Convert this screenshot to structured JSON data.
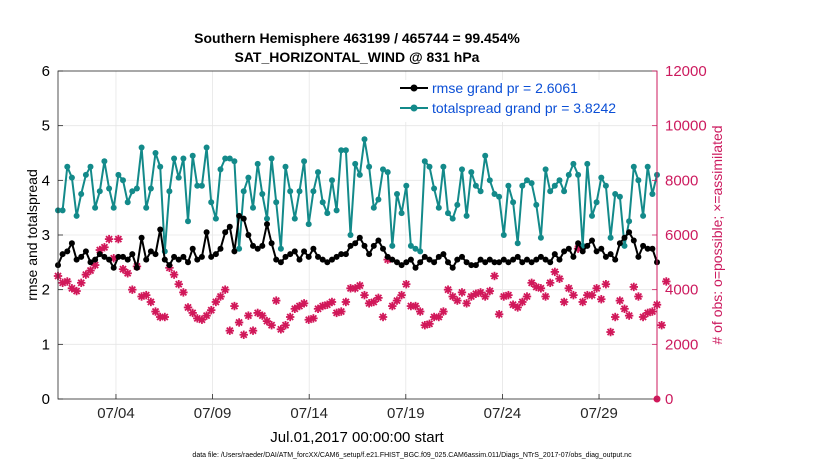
{
  "chart_data": {
    "type": "line",
    "title": "Southern Hemisphere 463199 / 465744 = 99.454%",
    "subtitle": "SAT_HORIZONTAL_WIND @ 831 hPa",
    "ylabel": "rmse and totalspread",
    "ylabel_right": "# of obs: o=possible; ×=assimilated",
    "xlabel": "Jul.01,2017 00:00:00 start",
    "footnote": "data file: /Users/raeder/DAI/ATM_forcXX/CAM6_setup/f.e21.FHIST_BGC.f09_025.CAM6assim.011/Diags_NTrS_2017-07/obs_diag_output.nc",
    "xlim": [
      1,
      32
    ],
    "ylim": [
      0,
      6
    ],
    "ylim_right": [
      0,
      12000
    ],
    "x_ticks": [
      4,
      9,
      14,
      19,
      24,
      29
    ],
    "x_tick_labels": [
      "07/04",
      "07/09",
      "07/14",
      "07/19",
      "07/24",
      "07/29"
    ],
    "y_ticks": [
      "0",
      "1",
      "2",
      "3",
      "4",
      "5",
      "6"
    ],
    "y_ticks_right": [
      "0",
      "2000",
      "4000",
      "6000",
      "8000",
      "10000",
      "12000"
    ],
    "colors": {
      "rmse": "#000000",
      "spread": "#138a8a",
      "obs": "#d1185a",
      "left_axis": "#000000",
      "right_axis": "#cc1a5e",
      "legend_text": "#0b4fd6"
    },
    "series": [
      {
        "name": "rmse grand pr = 2.6061",
        "key": "rmse",
        "values": [
          2.45,
          2.65,
          2.7,
          2.85,
          2.55,
          2.6,
          2.7,
          2.5,
          2.55,
          2.65,
          2.6,
          2.55,
          2.4,
          2.6,
          2.6,
          2.55,
          2.65,
          2.4,
          2.95,
          2.55,
          2.7,
          2.65,
          3.1,
          2.55,
          2.45,
          2.6,
          2.55,
          2.6,
          2.5,
          2.75,
          2.55,
          2.6,
          3.05,
          2.6,
          2.65,
          2.75,
          3.05,
          3.15,
          2.7,
          3.35,
          3.3,
          3.0,
          2.8,
          2.75,
          2.8,
          3.2,
          2.85,
          2.55,
          2.5,
          2.6,
          2.65,
          2.7,
          2.55,
          2.7,
          2.6,
          2.75,
          2.6,
          2.55,
          2.5,
          2.55,
          2.6,
          2.65,
          2.65,
          2.8,
          2.85,
          2.95,
          2.8,
          2.65,
          2.8,
          2.9,
          2.75,
          2.6,
          2.55,
          2.5,
          2.45,
          2.5,
          2.55,
          2.4,
          2.5,
          2.6,
          2.55,
          2.5,
          2.6,
          2.65,
          2.5,
          2.4,
          2.55,
          2.6,
          2.5,
          2.45,
          2.45,
          2.55,
          2.5,
          2.55,
          2.5,
          2.5,
          2.55,
          2.5,
          2.55,
          2.6,
          2.5,
          2.55,
          2.5,
          2.55,
          2.6,
          2.55,
          2.5,
          2.65,
          2.55,
          2.7,
          2.75,
          2.6,
          2.85,
          2.7,
          2.8,
          2.9,
          2.7,
          2.75,
          2.6,
          2.65,
          2.55,
          2.85,
          2.95,
          3.05,
          2.9,
          2.6,
          2.8,
          2.75,
          2.75,
          2.5
        ]
      },
      {
        "name": "totalspread grand pr = 3.8242",
        "key": "spread",
        "values": [
          3.45,
          3.45,
          4.25,
          4.05,
          3.35,
          3.75,
          4.1,
          4.25,
          3.5,
          3.8,
          4.35,
          3.85,
          3.5,
          4.1,
          4.0,
          3.6,
          3.8,
          3.85,
          4.6,
          3.5,
          3.85,
          4.5,
          4.25,
          2.7,
          3.8,
          4.4,
          4.05,
          4.4,
          3.25,
          4.45,
          3.9,
          3.9,
          4.6,
          3.6,
          3.3,
          4.2,
          4.4,
          4.4,
          4.35,
          2.75,
          3.8,
          4.05,
          3.5,
          4.3,
          3.75,
          3.3,
          4.4,
          3.6,
          2.75,
          4.25,
          3.8,
          3.3,
          3.8,
          4.35,
          3.2,
          3.8,
          4.15,
          3.6,
          3.4,
          4.0,
          3.45,
          4.55,
          4.55,
          3.0,
          4.3,
          4.1,
          4.75,
          4.25,
          3.5,
          3.65,
          4.2,
          4.15,
          2.8,
          3.75,
          3.4,
          3.9,
          2.8,
          2.75,
          2.7,
          4.35,
          4.25,
          3.85,
          3.5,
          4.25,
          3.4,
          3.3,
          3.55,
          4.2,
          3.35,
          4.15,
          3.9,
          3.8,
          4.45,
          4.0,
          3.75,
          3.7,
          3.0,
          3.9,
          3.6,
          2.85,
          3.9,
          4.0,
          3.95,
          3.55,
          2.95,
          4.2,
          3.8,
          3.9,
          4.0,
          3.8,
          4.1,
          4.3,
          4.1,
          2.8,
          4.3,
          3.35,
          3.6,
          4.05,
          3.9,
          2.95,
          3.75,
          3.7,
          2.8,
          3.25,
          4.25,
          4.0,
          3.35,
          4.25,
          3.75,
          4.1
        ]
      },
      {
        "name": "# of obs assimilated",
        "key": "obs",
        "axis": "right",
        "values": [
          4500,
          4250,
          4300,
          4050,
          3950,
          4250,
          4550,
          4700,
          4900,
          5450,
          5550,
          5850,
          5150,
          5850,
          4750,
          4600,
          4000,
          4850,
          3750,
          3800,
          3550,
          3200,
          3000,
          3000,
          4800,
          4550,
          4200,
          3900,
          3350,
          3150,
          2950,
          2900,
          3050,
          3250,
          3550,
          3750,
          4000,
          2500,
          3400,
          2800,
          2350,
          3050,
          2500,
          3150,
          3050,
          2850,
          2700,
          3600,
          2550,
          2700,
          3000,
          3300,
          3400,
          3500,
          2900,
          2950,
          3300,
          3400,
          3450,
          3550,
          3150,
          3200,
          3550,
          4050,
          4050,
          4150,
          3800,
          3500,
          3550,
          3700,
          3000,
          5100,
          3400,
          3600,
          3800,
          4200,
          3400,
          3400,
          3200,
          2700,
          2750,
          3000,
          3000,
          3200,
          4000,
          3750,
          3600,
          3900,
          3500,
          3750,
          3850,
          3900,
          3750,
          3950,
          4500,
          3100,
          3750,
          3800,
          3450,
          3350,
          3550,
          3750,
          4250,
          4100,
          4050,
          3750,
          4250,
          4650,
          4400,
          3550,
          4050,
          3800,
          5500,
          3550,
          3800,
          3800,
          4050,
          3650,
          4200,
          2450,
          3000,
          3600,
          3300,
          3050,
          4100,
          3750,
          3000,
          3150,
          3200,
          3450,
          2700,
          4300
        ]
      }
    ]
  }
}
